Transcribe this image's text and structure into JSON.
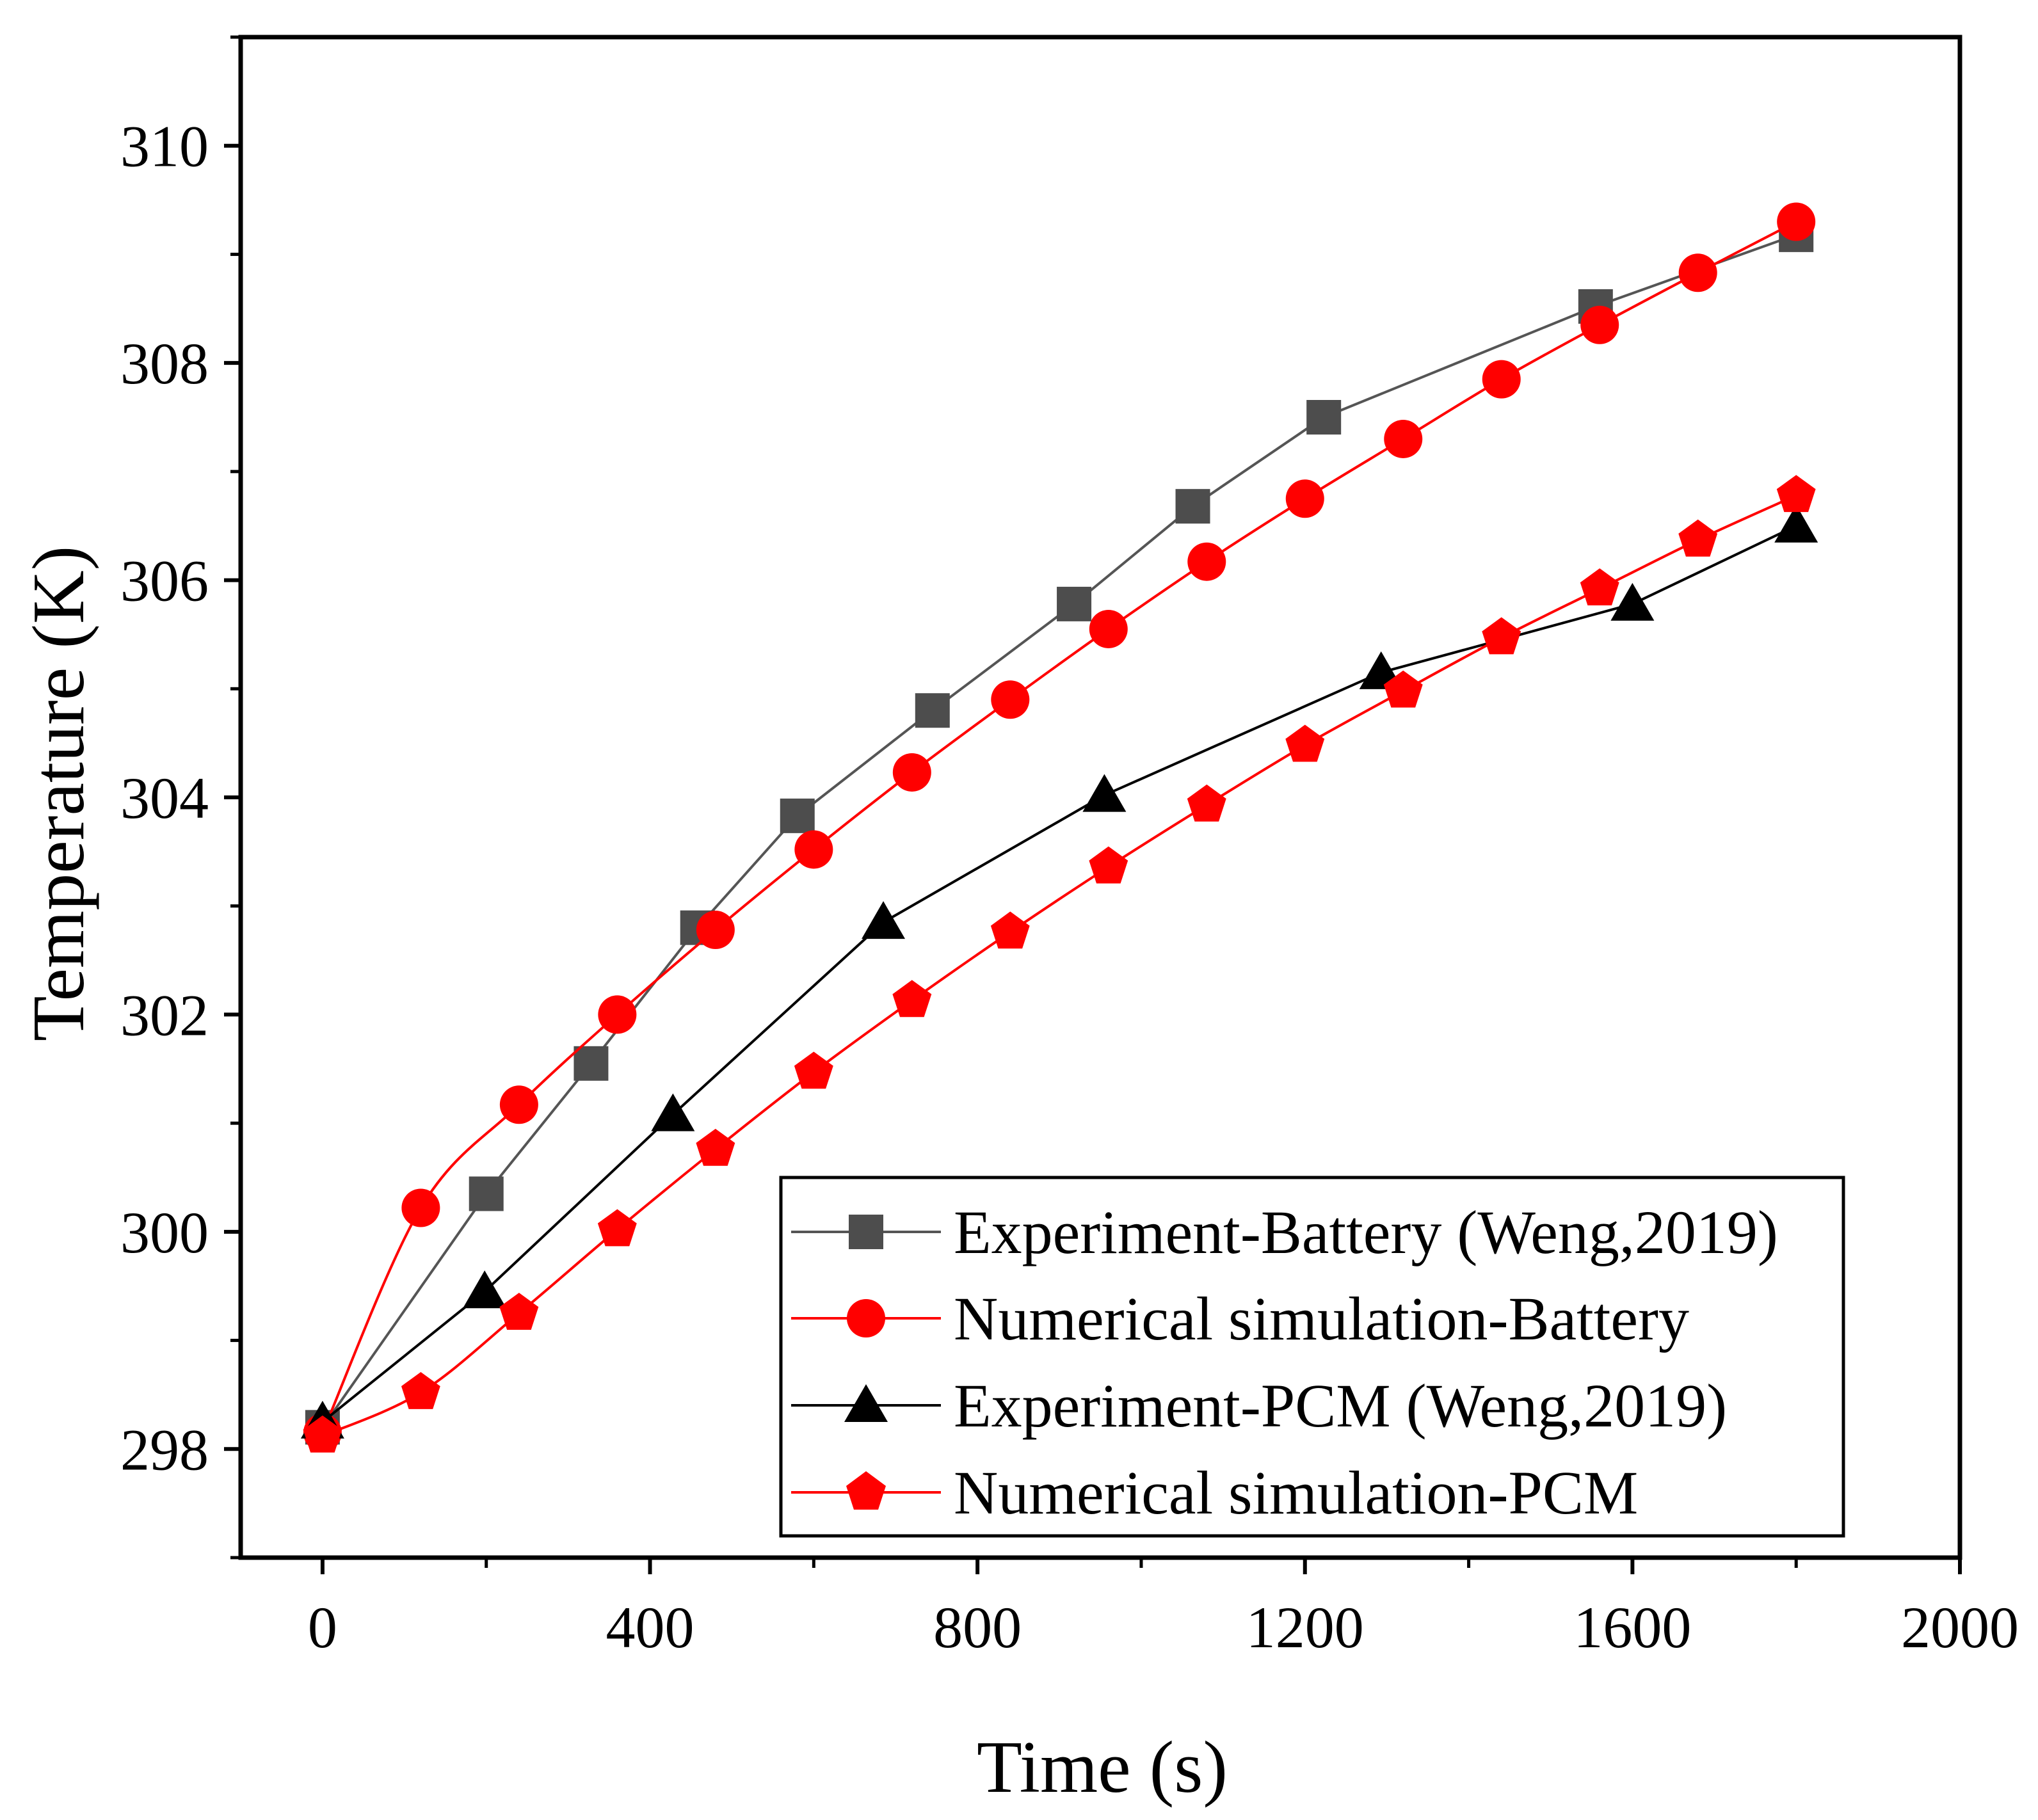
{
  "chart_data": {
    "type": "line",
    "title": "",
    "xlabel": "Time (s)",
    "ylabel": "Temperature (K)",
    "xlim": [
      -100,
      2000
    ],
    "ylim": [
      297,
      311
    ],
    "x_ticks": [
      0,
      400,
      800,
      1200,
      1600,
      2000
    ],
    "y_ticks": [
      298,
      300,
      302,
      304,
      306,
      308,
      310
    ],
    "x_tick_labels": [
      "0",
      "400",
      "800",
      "1200",
      "1600",
      "2000"
    ],
    "y_tick_labels": [
      "298",
      "300",
      "302",
      "304",
      "306",
      "308",
      "310"
    ],
    "legend_position": "bottom-right",
    "series": [
      {
        "name": "Experiment-Battery (Weng,2019)",
        "marker": "square",
        "color": "#4d4d4d",
        "line_color": "#555555",
        "smooth": false,
        "x": [
          0,
          200,
          328,
          458,
          580,
          745,
          918,
          1063,
          1223,
          1555,
          1800
        ],
        "y": [
          298.2,
          300.35,
          301.55,
          302.8,
          303.83,
          304.8,
          305.78,
          306.68,
          307.5,
          308.52,
          309.18
        ]
      },
      {
        "name": "Numerical simulation-Battery",
        "marker": "circle",
        "color": "#ff0000",
        "line_color": "#ff0000",
        "smooth": true,
        "x": [
          0,
          120,
          240,
          360,
          480,
          600,
          720,
          840,
          960,
          1080,
          1200,
          1320,
          1440,
          1560,
          1680,
          1800
        ],
        "y": [
          298.15,
          300.22,
          301.17,
          302.0,
          302.78,
          303.52,
          304.23,
          304.9,
          305.55,
          306.17,
          306.75,
          307.3,
          307.85,
          308.35,
          308.83,
          309.3
        ]
      },
      {
        "name": "Experiment-PCM (Weng,2019)",
        "marker": "triangle",
        "color": "#000000",
        "line_color": "#000000",
        "smooth": false,
        "x": [
          0,
          198,
          428,
          685,
          955,
          1293,
          1600,
          1800
        ],
        "y": [
          298.25,
          299.45,
          301.08,
          302.85,
          304.02,
          305.15,
          305.78,
          306.5
        ]
      },
      {
        "name": "Numerical simulation-PCM",
        "marker": "pentagon",
        "color": "#ff0000",
        "line_color": "#ff0000",
        "smooth": true,
        "x": [
          0,
          120,
          240,
          360,
          480,
          600,
          720,
          840,
          960,
          1080,
          1200,
          1320,
          1440,
          1560,
          1680,
          1800
        ],
        "y": [
          298.12,
          298.52,
          299.25,
          300.02,
          300.76,
          301.47,
          302.13,
          302.76,
          303.36,
          303.93,
          304.48,
          304.98,
          305.47,
          305.92,
          306.37,
          306.78
        ]
      }
    ]
  }
}
